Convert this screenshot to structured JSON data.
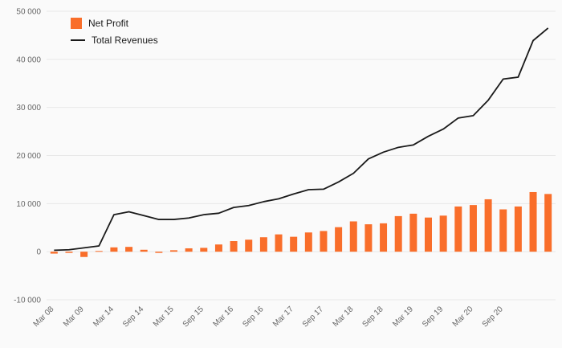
{
  "chart_data": {
    "type": "combo-bar-line",
    "background": "#fafafa",
    "grid": true,
    "grid_color": "#e8e8e8",
    "axis_text_color": "#666666",
    "legend_position": "top-left",
    "ylim": [
      -10000,
      50000
    ],
    "ytick_step": 10000,
    "ytick_labels": [
      "-10 000",
      "0",
      "10 000",
      "20 000",
      "30 000",
      "40 000",
      "50 000"
    ],
    "x_tick_labels": [
      "Mar 08",
      "Mar 09",
      "Mar 14",
      "Sep 14",
      "Mar 15",
      "Sep 15",
      "Mar 16",
      "Sep 16",
      "Mar 17",
      "Sep 17",
      "Mar 18",
      "Sep 18",
      "Mar 19",
      "Sep 19",
      "Mar 20",
      "Sep 20"
    ],
    "tick_every": 2,
    "series": [
      {
        "name": "Net Profit",
        "type": "bar",
        "color": "#f96e2a",
        "values": [
          -400,
          -250,
          -1100,
          150,
          900,
          1000,
          400,
          -250,
          300,
          700,
          800,
          1500,
          2200,
          2500,
          3000,
          3600,
          3100,
          4000,
          4300,
          5100,
          6300,
          5700,
          5900,
          7400,
          7900,
          7100,
          7500,
          9400,
          9700,
          10900,
          8800,
          9400,
          12400,
          12000
        ]
      },
      {
        "name": "Total Revenues",
        "type": "line",
        "color": "#1a1a1a",
        "values": [
          300,
          400,
          800,
          1200,
          7700,
          8300,
          7500,
          6700,
          6700,
          7000,
          7700,
          8000,
          9200,
          9600,
          10400,
          11000,
          12000,
          12900,
          13000,
          14500,
          16300,
          19300,
          20700,
          21700,
          22200,
          24000,
          25500,
          27800,
          28300,
          31500,
          35900,
          36300,
          43900,
          46500
        ]
      }
    ]
  }
}
